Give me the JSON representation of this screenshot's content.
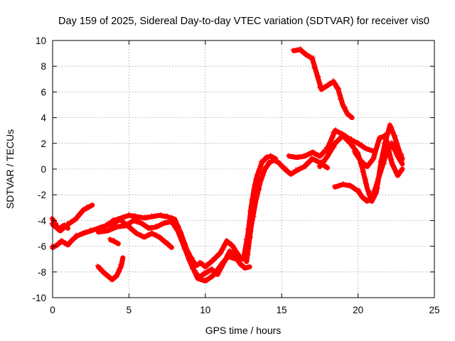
{
  "chart_data": {
    "type": "line",
    "title": "Day 159 of 2025, Sidereal Day-to-day VTEC variation (SDTVAR) for receiver vis0",
    "xlabel": "GPS time / hours",
    "ylabel": "SDTVAR / TECUs",
    "xlim": [
      0,
      25
    ],
    "ylim": [
      -10,
      10
    ],
    "xticks": [
      "0",
      "5",
      "10",
      "15",
      "20",
      "25"
    ],
    "yticks": [
      "-10",
      "-8",
      "-6",
      "-4",
      "-2",
      "0",
      "2",
      "4",
      "6",
      "8",
      "10"
    ],
    "grid": true,
    "marker": "plus",
    "color": "#ff0000",
    "series": [
      {
        "x": [
          0.0,
          0.5,
          1.0,
          1.5,
          2.0,
          2.3,
          2.6
        ],
        "y": [
          -4.3,
          -4.8,
          -4.3,
          -3.9,
          -3.2,
          -3.0,
          -2.8
        ]
      },
      {
        "x": [
          0.0,
          0.3,
          0.6,
          1.0,
          1.3,
          1.6,
          2.0,
          2.5,
          3.0,
          3.5,
          4.0,
          4.3
        ],
        "y": [
          -6.1,
          -5.9,
          -5.6,
          -5.9,
          -5.5,
          -5.2,
          -5.0,
          -4.8,
          -4.6,
          -4.4,
          -4.2,
          -4.0
        ]
      },
      {
        "x": [
          0.0,
          0.2,
          0.4,
          0.7,
          1.0
        ],
        "y": [
          -3.9,
          -4.3,
          -4.7,
          -4.4,
          -4.6
        ]
      },
      {
        "x": [
          3.0,
          3.5,
          4.0,
          4.5,
          5.0,
          5.5,
          6.0,
          6.5,
          7.0,
          7.5,
          8.0,
          8.4,
          8.8,
          9.1,
          9.4,
          9.7,
          10.0,
          10.5,
          11.0,
          11.4,
          11.8,
          12.1,
          12.4,
          12.7
        ],
        "y": [
          -4.7,
          -4.4,
          -4.0,
          -3.8,
          -3.6,
          -3.7,
          -3.8,
          -3.7,
          -3.6,
          -3.7,
          -3.9,
          -5.0,
          -6.3,
          -7.0,
          -7.5,
          -7.3,
          -7.6,
          -7.1,
          -6.5,
          -5.6,
          -6.0,
          -6.6,
          -7.0,
          -6.8
        ]
      },
      {
        "x": [
          3.0,
          3.6,
          4.2,
          4.8,
          5.3,
          5.8,
          6.3,
          6.8,
          7.3,
          7.8,
          8.2,
          8.6,
          9.0,
          9.3,
          9.6,
          10.0,
          10.4,
          10.8,
          11.2,
          11.6,
          12.0,
          12.3,
          12.6,
          12.9
        ],
        "y": [
          -4.9,
          -4.8,
          -4.5,
          -4.4,
          -4.0,
          -4.2,
          -4.6,
          -4.5,
          -4.2,
          -4.1,
          -4.8,
          -6.0,
          -7.2,
          -8.0,
          -8.4,
          -8.1,
          -7.8,
          -8.2,
          -7.3,
          -6.4,
          -6.9,
          -7.4,
          -7.7,
          -7.6
        ]
      },
      {
        "x": [
          4.5,
          5.0,
          5.5,
          6.0,
          6.5,
          7.0,
          7.5,
          7.8
        ],
        "y": [
          -4.0,
          -4.5,
          -5.0,
          -5.3,
          -5.0,
          -5.3,
          -5.8,
          -6.1
        ]
      },
      {
        "x": [
          3.8,
          4.0,
          4.3
        ],
        "y": [
          -5.5,
          -5.6,
          -5.8
        ]
      },
      {
        "x": [
          8.0,
          8.5,
          9.0,
          9.5,
          10.0,
          10.5,
          11.0,
          11.5,
          12.0
        ],
        "y": [
          -4.2,
          -5.5,
          -7.2,
          -8.5,
          -8.7,
          -8.3,
          -7.5,
          -6.8,
          -7.0
        ]
      },
      {
        "x": [
          3.0,
          3.3,
          3.6,
          3.9,
          4.2,
          4.5,
          4.6
        ],
        "y": [
          -7.6,
          -8.0,
          -8.3,
          -8.6,
          -8.3,
          -7.5,
          -6.9
        ]
      },
      {
        "x": [
          12.5,
          12.8,
          13.0,
          13.2,
          13.4,
          13.7,
          14.0,
          14.3,
          14.6
        ],
        "y": [
          -7.0,
          -5.0,
          -3.0,
          -1.5,
          -0.5,
          0.5,
          0.9,
          1.0,
          0.8
        ]
      },
      {
        "x": [
          12.7,
          13.0,
          13.3,
          13.6,
          13.9,
          14.2,
          14.5,
          14.8,
          15.2,
          15.6,
          16.0,
          16.5,
          17.0,
          17.5,
          18.0
        ],
        "y": [
          -7.2,
          -4.5,
          -2.5,
          -1.0,
          0.0,
          0.5,
          0.7,
          0.5,
          0.0,
          -0.4,
          -0.1,
          0.2,
          0.8,
          0.5,
          0.1
        ]
      },
      {
        "x": [
          15.5,
          16.0,
          16.5,
          17.0,
          17.5,
          18.0,
          18.5,
          19.0,
          19.5,
          20.0,
          20.5,
          21.0
        ],
        "y": [
          1.0,
          0.9,
          1.0,
          1.3,
          1.0,
          1.6,
          3.0,
          2.7,
          2.3,
          2.0,
          1.6,
          1.4
        ]
      },
      {
        "x": [
          17.5,
          18.0,
          18.5,
          19.0,
          19.5,
          20.0,
          20.3,
          20.6,
          20.9,
          21.2,
          21.5,
          21.8,
          22.1,
          22.4,
          22.7,
          22.9
        ],
        "y": [
          0.2,
          1.0,
          2.0,
          2.6,
          2.0,
          1.2,
          0.0,
          -1.5,
          -2.5,
          -1.8,
          0.5,
          2.2,
          3.4,
          2.5,
          1.4,
          0.8
        ]
      },
      {
        "x": [
          18.5,
          19.0,
          19.5,
          20.0,
          20.3,
          20.6,
          21.0,
          21.4,
          21.8,
          22.2,
          22.6,
          22.9
        ],
        "y": [
          -1.4,
          -1.2,
          -1.3,
          -1.7,
          -2.2,
          -2.5,
          -2.0,
          -0.5,
          1.0,
          2.0,
          1.0,
          0.4
        ]
      },
      {
        "x": [
          19.8,
          20.2,
          20.6,
          21.0,
          21.4,
          21.8,
          22.2,
          22.6,
          22.9
        ],
        "y": [
          1.3,
          0.6,
          0.2,
          0.8,
          2.4,
          2.6,
          0.5,
          -0.5,
          0.0
        ]
      },
      {
        "x": [
          15.8,
          16.2,
          16.6,
          17.0,
          17.3,
          17.6,
          18.0,
          18.4,
          18.7,
          19.0,
          19.3,
          19.6
        ],
        "y": [
          9.2,
          9.3,
          8.9,
          8.6,
          7.4,
          6.2,
          6.5,
          6.8,
          6.2,
          5.0,
          4.3,
          4.0
        ]
      }
    ]
  }
}
